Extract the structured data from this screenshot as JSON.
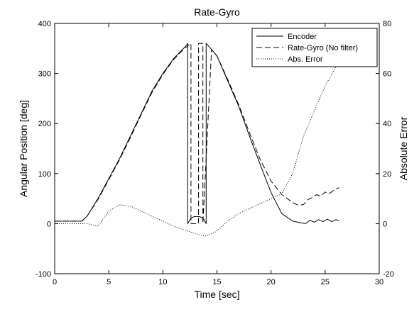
{
  "chart_data": {
    "type": "line",
    "title": "Rate-Gyro",
    "xlabel": "Time [sec]",
    "ylabel": "Angular Position [deg]",
    "y2label": "Absolute Error",
    "xlim": [
      0,
      30
    ],
    "ylim": [
      -100,
      400
    ],
    "y2lim": [
      -20,
      80
    ],
    "xticks": [
      0,
      5,
      10,
      15,
      20,
      25,
      30
    ],
    "yticks": [
      -100,
      0,
      100,
      200,
      300,
      400
    ],
    "y2ticks": [
      -20,
      0,
      20,
      40,
      60,
      80
    ],
    "grid": false,
    "legend_position": "top-right",
    "series": [
      {
        "name": "Encoder",
        "axis": "left",
        "style": "solid",
        "color": "#000000",
        "x": [
          0,
          2.5,
          3,
          4,
          5,
          6,
          7,
          8,
          9,
          10,
          11,
          12,
          12.3,
          12.3,
          12.5,
          12.7,
          12.9,
          13.1,
          13.4,
          13.6,
          13.8,
          14.0,
          14.0,
          14.5,
          15,
          16,
          17,
          18,
          19,
          20,
          21,
          22,
          22.7,
          23.2,
          23.6,
          24,
          24.4,
          24.8,
          25.2,
          25.6,
          26.0,
          26.3
        ],
        "y": [
          5,
          5,
          15,
          50,
          90,
          130,
          175,
          220,
          265,
          300,
          330,
          352,
          360,
          0,
          8,
          12,
          14,
          14,
          14,
          12,
          8,
          0,
          360,
          348,
          335,
          285,
          235,
          175,
          118,
          62,
          20,
          5,
          2,
          0,
          7,
          3,
          8,
          4,
          9,
          4,
          8,
          6
        ]
      },
      {
        "name": "Rate-Gyro (No filter)",
        "axis": "left",
        "style": "dashed",
        "color": "#000000",
        "x": [
          0,
          2.5,
          3,
          4,
          5,
          6,
          7,
          8,
          9,
          10,
          11,
          12,
          12.6,
          12.6,
          13.3,
          13.3,
          13.7,
          13.7,
          14.5,
          15,
          16,
          17,
          18,
          19,
          20,
          21,
          22,
          22.5,
          23,
          23.4,
          23.8,
          24.2,
          24.6,
          25.0,
          25.4,
          25.8,
          26.3
        ],
        "y": [
          5,
          5,
          15,
          48,
          88,
          128,
          172,
          218,
          262,
          298,
          328,
          350,
          360,
          0,
          0,
          360,
          360,
          0,
          348,
          335,
          288,
          238,
          182,
          128,
          85,
          58,
          42,
          37,
          38,
          48,
          52,
          58,
          55,
          63,
          60,
          67,
          72
        ]
      },
      {
        "name": "Abs. Error",
        "axis": "right",
        "style": "dotted",
        "color": "#000000",
        "x": [
          0,
          3,
          3.5,
          4,
          5,
          6,
          7,
          8,
          9,
          10,
          11,
          12,
          13,
          14,
          15,
          16,
          17,
          18,
          19,
          20,
          21,
          22,
          23,
          24,
          25,
          26.3
        ],
        "y": [
          0,
          0,
          -0.5,
          -1,
          5,
          7.5,
          7,
          5,
          3,
          1,
          -1,
          -2.5,
          -4,
          -5,
          -3,
          1,
          4,
          6,
          8,
          10,
          12,
          20,
          35,
          45,
          55,
          65
        ]
      }
    ]
  }
}
